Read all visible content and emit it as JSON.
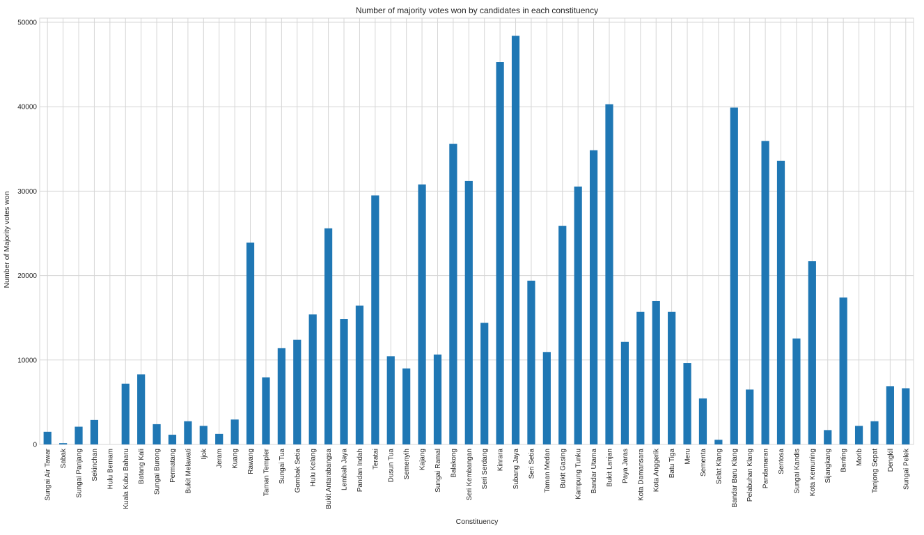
{
  "chart_data": {
    "type": "bar",
    "title": "Number of majority votes won by candidates in each constituency",
    "xlabel": "Constituency",
    "ylabel": "Number of Majority votes won",
    "ylim": [
      0,
      50500
    ],
    "yticks": [
      0,
      10000,
      20000,
      30000,
      40000,
      50000
    ],
    "grid": true,
    "bar_color": "#1f77b4",
    "categories": [
      "Sungai Air Tawar",
      "Sabak",
      "Sungai Panjang",
      "Sekinchan",
      "Hulu Bernam",
      "Kuala Kubu Baharu",
      "Batang Kali",
      "Sungai Burong",
      "Permatang",
      "Bukit Melawati",
      "Ijok",
      "Jeram",
      "Kuang",
      "Rawang",
      "Taman Templer",
      "Sungai Tua",
      "Gombak Setia",
      "Hulu Kelang",
      "Bukit Antarabangsa",
      "Lembah Jaya",
      "Pandan Indah",
      "Teratai",
      "Dusun Tua",
      "Semenyih",
      "Kajang",
      "Sungai Ramal",
      "Balakong",
      "Seri Kembangan",
      "Seri Serdang",
      "Kinrara",
      "Subang Jaya",
      "Seri Setia",
      "Taman Medan",
      "Bukit Gasing",
      "Kampung Tunku",
      "Bandar Utama",
      "Bukit Lanjan",
      "Paya Jaras",
      "Kota Damansara",
      "Kota Anggerik",
      "Batu Tiga",
      "Meru",
      "Sementa",
      "Selat Klang",
      "Bandar Baru Klang",
      "Pelabuhan Klang",
      "Pandamaran",
      "Sentosa",
      "Sungai Kandis",
      "Kota Kemuning",
      "Sijangkang",
      "Banting",
      "Morib",
      "Tanjong Sepat",
      "Dengkil",
      "Sungai Pelek"
    ],
    "values": [
      1500,
      150,
      2100,
      2900,
      0,
      7200,
      8300,
      2400,
      1150,
      2750,
      2200,
      1250,
      2950,
      23900,
      7950,
      11400,
      12400,
      15400,
      25600,
      14850,
      16450,
      29500,
      10450,
      9000,
      30800,
      10650,
      35600,
      31200,
      14400,
      45300,
      48400,
      19400,
      10950,
      25900,
      30550,
      34850,
      40300,
      12150,
      15700,
      17000,
      15700,
      9650,
      5450,
      550,
      39900,
      6500,
      35950,
      33600,
      12550,
      21700,
      1700,
      17400,
      2200,
      2750,
      6900,
      6650
    ]
  }
}
